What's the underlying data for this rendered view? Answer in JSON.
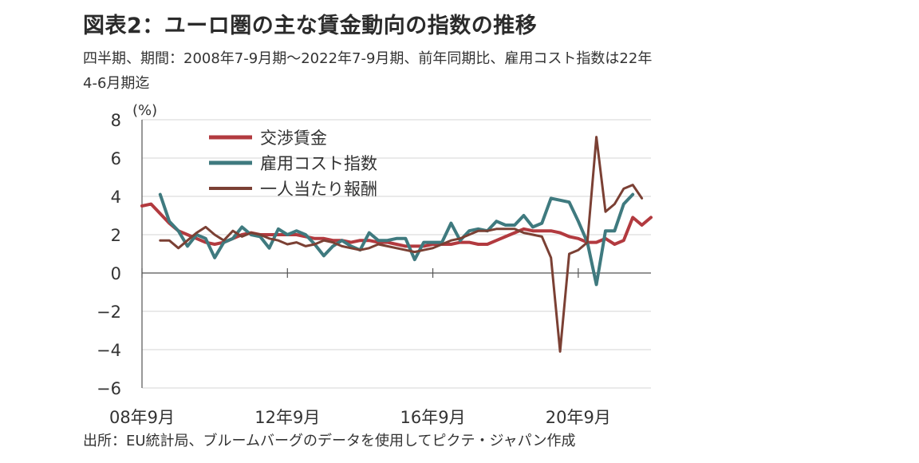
{
  "title": "図表2：ユーロ圏の主な賃金動向の指数の推移",
  "subtitle": "四半期、期間：2008年7-9月期～2022年7-9月期、前年同期比、雇用コスト指数は22年4-6月期迄",
  "source": "出所：EU統計局、ブルームバーグのデータを使用してピクテ・ジャパン作成",
  "chart_data": {
    "type": "line",
    "title": "図表2：ユーロ圏の主な賃金動向の指数の推移",
    "ylabel": "(%)",
    "ylim": [
      -6,
      8
    ],
    "yticks": [
      "8",
      "6",
      "4",
      "2",
      "0",
      "−2",
      "−4",
      "−6"
    ],
    "ytick_values": [
      8,
      6,
      4,
      2,
      0,
      -2,
      -4,
      -6
    ],
    "x_range": [
      0,
      56
    ],
    "xticks": [
      {
        "label": "08年9月",
        "x": 0
      },
      {
        "label": "12年9月",
        "x": 16
      },
      {
        "label": "16年9月",
        "x": 32
      },
      {
        "label": "20年9月",
        "x": 48
      }
    ],
    "grid": "horizontal",
    "legend_position": "top-left",
    "series": [
      {
        "name": "交渉賃金",
        "color": "#b23a3f",
        "width": 4,
        "start": 0,
        "values": [
          3.5,
          3.6,
          3.1,
          2.6,
          2.2,
          2.0,
          1.8,
          1.6,
          1.5,
          1.6,
          1.8,
          2.0,
          2.1,
          2.0,
          2.0,
          2.0,
          2.0,
          2.0,
          1.9,
          1.8,
          1.8,
          1.7,
          1.7,
          1.6,
          1.7,
          1.7,
          1.6,
          1.6,
          1.5,
          1.4,
          1.4,
          1.4,
          1.5,
          1.5,
          1.5,
          1.6,
          1.6,
          1.5,
          1.5,
          1.7,
          1.9,
          2.1,
          2.3,
          2.2,
          2.2,
          2.2,
          2.1,
          1.9,
          1.8,
          1.6,
          1.6,
          1.8,
          1.5,
          1.7,
          2.9,
          2.5,
          2.9
        ]
      },
      {
        "name": "雇用コスト指数",
        "color": "#3f7a7f",
        "width": 4,
        "start": 2,
        "values": [
          4.1,
          2.7,
          2.2,
          1.4,
          2.0,
          1.8,
          0.8,
          1.6,
          1.8,
          2.4,
          2.0,
          1.9,
          1.3,
          2.3,
          2.0,
          2.2,
          2.0,
          1.5,
          0.9,
          1.4,
          1.7,
          1.4,
          1.2,
          2.1,
          1.7,
          1.7,
          1.8,
          1.8,
          0.7,
          1.6,
          1.6,
          1.6,
          2.6,
          1.7,
          2.2,
          2.3,
          2.2,
          2.7,
          2.5,
          2.5,
          3.0,
          2.4,
          2.6,
          3.9,
          3.8,
          3.7,
          2.7,
          1.6,
          -0.6,
          2.2,
          2.2,
          3.6,
          4.1
        ]
      },
      {
        "name": "一人当たり報酬",
        "color": "#7b4034",
        "width": 3,
        "start": 2,
        "values": [
          1.7,
          1.7,
          1.3,
          1.7,
          2.1,
          2.4,
          2.0,
          1.7,
          2.2,
          1.9,
          2.1,
          2.0,
          1.8,
          1.7,
          1.5,
          1.6,
          1.4,
          1.5,
          1.7,
          1.6,
          1.4,
          1.3,
          1.2,
          1.3,
          1.5,
          1.4,
          1.3,
          1.2,
          1.1,
          1.2,
          1.3,
          1.5,
          1.7,
          1.8,
          2.0,
          2.2,
          2.2,
          2.3,
          2.3,
          2.3,
          2.1,
          2.0,
          1.9,
          0.8,
          -4.1,
          1.0,
          1.2,
          1.6,
          7.1,
          3.2,
          3.6,
          4.4,
          4.6,
          3.9
        ]
      }
    ]
  }
}
